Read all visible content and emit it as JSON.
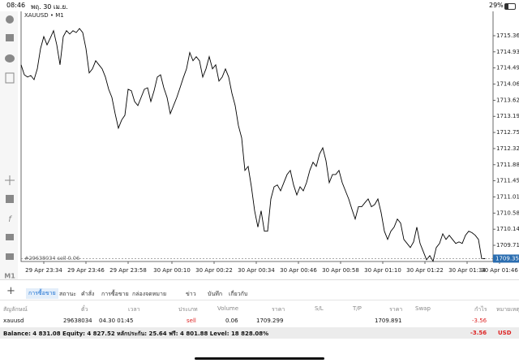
{
  "status_bar": {
    "time": "08:46",
    "date": "พฤ. 30 เม.ย.",
    "battery": "29%"
  },
  "chart_data": {
    "type": "line",
    "title": "XAUUSD • M1",
    "color": "#000000",
    "values": [
      1714.58,
      1714.31,
      1714.25,
      1714.29,
      1714.18,
      1714.47,
      1715.02,
      1715.34,
      1715.12,
      1715.3,
      1715.5,
      1715.12,
      1714.58,
      1715.34,
      1715.5,
      1715.41,
      1715.5,
      1715.45,
      1715.56,
      1715.45,
      1715.02,
      1714.36,
      1714.47,
      1714.69,
      1714.58,
      1714.47,
      1714.25,
      1713.92,
      1713.7,
      1713.26,
      1712.87,
      1713.09,
      1713.22,
      1713.92,
      1713.88,
      1713.59,
      1713.48,
      1713.7,
      1713.92,
      1713.96,
      1713.59,
      1713.88,
      1714.25,
      1714.31,
      1713.96,
      1713.7,
      1713.26,
      1713.48,
      1713.7,
      1713.96,
      1714.23,
      1714.47,
      1714.91,
      1714.69,
      1714.8,
      1714.69,
      1714.25,
      1714.47,
      1714.8,
      1714.47,
      1714.58,
      1714.14,
      1714.25,
      1714.47,
      1714.25,
      1713.81,
      1713.48,
      1712.94,
      1712.61,
      1711.73,
      1711.84,
      1711.29,
      1710.64,
      1710.2,
      1710.64,
      1710.09,
      1710.09,
      1710.96,
      1711.29,
      1711.34,
      1711.18,
      1711.4,
      1711.62,
      1711.73,
      1711.34,
      1711.07,
      1711.29,
      1711.18,
      1711.4,
      1711.73,
      1711.95,
      1711.84,
      1712.17,
      1712.34,
      1711.99,
      1711.4,
      1711.62,
      1711.62,
      1711.73,
      1711.4,
      1711.18,
      1710.96,
      1710.68,
      1710.42,
      1710.75,
      1710.75,
      1710.86,
      1710.96,
      1710.75,
      1710.81,
      1710.96,
      1710.59,
      1710.09,
      1709.87,
      1710.09,
      1710.2,
      1710.42,
      1710.31,
      1709.87,
      1709.76,
      1709.65,
      1709.8,
      1710.2,
      1709.76,
      1709.54,
      1709.32,
      1709.43,
      1709.28,
      1709.65,
      1709.76,
      1710.02,
      1709.87,
      1709.98,
      1709.87,
      1709.76,
      1709.8,
      1709.76,
      1709.98,
      1710.09,
      1710.05,
      1709.98,
      1709.87,
      1709.35,
      1709.35
    ],
    "xlim": [
      0,
      145.5
    ],
    "xticks": [
      {
        "value": 7,
        "label": "29 Apr 23:34"
      },
      {
        "value": 20,
        "label": "29 Apr 23:46"
      },
      {
        "value": 33,
        "label": "29 Apr 23:58"
      },
      {
        "value": 46.5,
        "label": "30 Apr 00:10"
      },
      {
        "value": 59.5,
        "label": "30 Apr 00:22"
      },
      {
        "value": 72.5,
        "label": "30 Apr 00:34"
      },
      {
        "value": 85.5,
        "label": "30 Apr 00:46"
      },
      {
        "value": 98.5,
        "label": "30 Apr 00:58"
      },
      {
        "value": 111.5,
        "label": "30 Apr 01:10"
      },
      {
        "value": 124.5,
        "label": "30 Apr 01:22"
      },
      {
        "value": 137.5,
        "label": "30 Apr 01:34"
      },
      {
        "value": 147.5,
        "label": "30 Apr 01:46"
      }
    ],
    "ylim": [
      1709.273,
      1716.022
    ],
    "yticks": [
      1715.365,
      {
        "value": 1714.93,
        "label": "1714.930"
      },
      1714.495,
      {
        "value": 1714.06,
        "label": "1714.060"
      },
      1713.625,
      {
        "value": 1713.19,
        "label": "1713.190"
      },
      1712.755,
      {
        "value": 1712.32,
        "label": "1712.320"
      },
      1711.885,
      {
        "value": 1711.45,
        "label": "1711.450"
      },
      1711.015,
      {
        "value": 1710.58,
        "label": "1710.580"
      },
      1710.145,
      {
        "value": 1709.71,
        "label": "1709.710"
      }
    ],
    "current_price": 1709.351,
    "annotation": "#29638034 sell 0.06",
    "timeframe": "M1"
  },
  "tabs": [
    "การซื้อขาย",
    "สถานะ",
    "คำสั่ง",
    "การซื้อขาย",
    "กล่องจดหมาย",
    "ข่าว",
    "บันทึก",
    "เกี่ยวกับ"
  ],
  "positions": {
    "columns": [
      "สัญลักษณ์",
      "ตั๋ว",
      "เวลา",
      "ประเภท",
      "Volume",
      "ราคา",
      "S/L",
      "T/P",
      "ราคา",
      "Swap",
      "กำไร",
      "หมายเหตุ"
    ],
    "rows": [
      [
        "xauusd",
        "29638034",
        "04.30 01:45",
        "sell",
        "0.06",
        "1709.299",
        null,
        null,
        "1709.891",
        null,
        "-3.56",
        null
      ]
    ]
  },
  "footer": {
    "summary": "Balance: 4 831.08 Equity: 4 827.52 หลักประกัน: 25.64 ฟรี: 4 801.88 Level: 18 828.08%",
    "profit": "-3.56",
    "currency": "USD"
  }
}
